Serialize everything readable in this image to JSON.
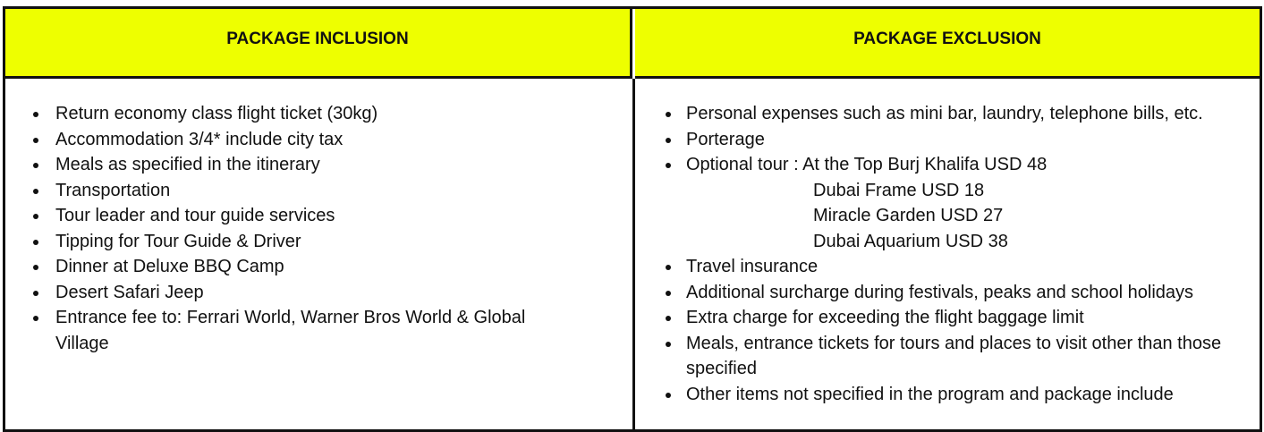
{
  "inclusion": {
    "title": "PACKAGE INCLUSION",
    "items": [
      "Return economy class flight ticket (30kg)",
      "Accommodation 3/4* include city tax",
      "Meals as specified in the itinerary",
      "Transportation",
      "Tour leader and tour guide services",
      "Tipping for Tour Guide & Driver",
      "Dinner at Deluxe BBQ Camp",
      "Desert Safari Jeep",
      "Entrance fee to: Ferrari World, Warner Bros World & Global Village"
    ]
  },
  "exclusion": {
    "title": "PACKAGE EXCLUSION",
    "items": [
      "Personal expenses such as mini bar, laundry, telephone bills, etc.",
      "Porterage",
      "Optional tour : At the Top Burj Khalifa USD 48",
      "Travel insurance",
      "Additional surcharge during festivals, peaks and school holidays",
      "Extra charge for exceeding the flight baggage limit",
      "Meals, entrance tickets for tours and places to visit other than those specified",
      "Other items not specified in the program and package include"
    ],
    "optional_tour_extras": [
      "Dubai Frame USD 18",
      "Miracle Garden USD 27",
      "Dubai Aquarium USD 38"
    ]
  },
  "colors": {
    "header_bg": "#eeff00",
    "border": "#111111"
  }
}
